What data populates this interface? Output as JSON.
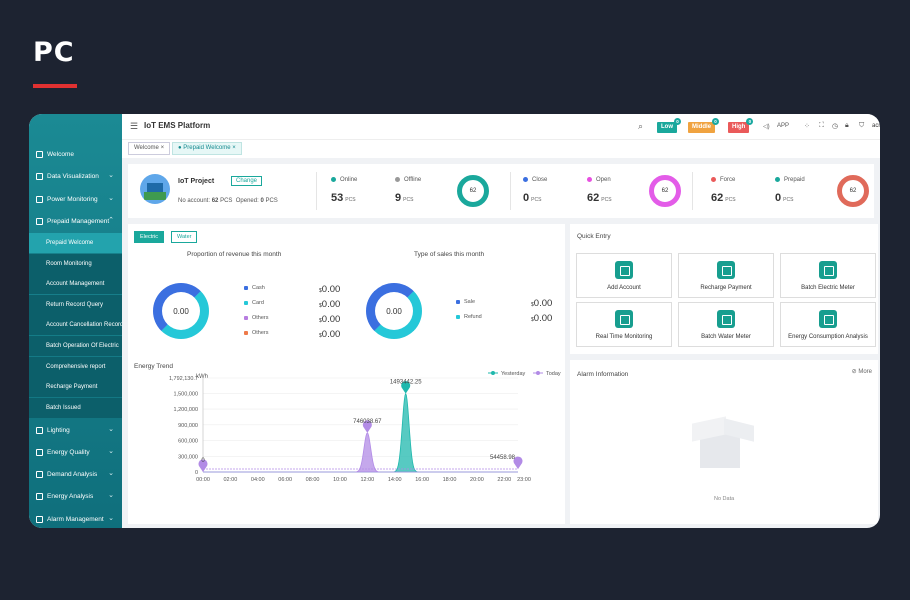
{
  "page_label": "PC",
  "app": {
    "title": "IoT EMS Platform",
    "user": "acrel",
    "app_label": "APP"
  },
  "sidebar": {
    "items": [
      {
        "label": "Welcome"
      },
      {
        "label": "Data Visualization"
      },
      {
        "label": "Power Monitoring"
      },
      {
        "label": "Prepaid Management"
      }
    ],
    "sub_items": [
      {
        "label": "Prepaid Welcome",
        "active": true
      },
      {
        "label": "Room Monitoring"
      },
      {
        "label": "Account Management"
      },
      {
        "label": "Return Record Query"
      },
      {
        "label": "Account Cancellation Record"
      },
      {
        "label": "Batch Operation Of Electric"
      },
      {
        "label": "Comprehensive report"
      },
      {
        "label": "Recharge Payment"
      },
      {
        "label": "Batch Issued"
      }
    ],
    "bottom_items": [
      {
        "label": "Lighting"
      },
      {
        "label": "Energy Quality"
      },
      {
        "label": "Demand Analysis"
      },
      {
        "label": "Energy Analysis"
      },
      {
        "label": "Alarm Management"
      }
    ]
  },
  "tabs": [
    {
      "label": "Welcome"
    },
    {
      "label": "Prepaid Welcome"
    }
  ],
  "alarm_levels": [
    {
      "label": "Low",
      "count": "0",
      "color": "#1aa89c"
    },
    {
      "label": "Middle",
      "count": "0",
      "color": "#f0a340"
    },
    {
      "label": "High",
      "count": "0",
      "color": "#ea5a5a"
    }
  ],
  "project": {
    "name": "IoT Project",
    "change_label": "Change",
    "no_account_label": "No account:",
    "no_account": "62",
    "opened_label": "Opened:",
    "opened": "0",
    "unit": "PCS"
  },
  "stats": [
    {
      "a_label": "Online",
      "a_val": "53",
      "a_color": "#1aa89c",
      "b_label": "Offline",
      "b_val": "9",
      "b_color": "#999999",
      "total": "62",
      "ring_color": "#1aa89c"
    },
    {
      "a_label": "Close",
      "a_val": "0",
      "a_color": "#3b6fe0",
      "b_label": "Open",
      "b_val": "62",
      "b_color": "#e74fe0",
      "total": "62",
      "ring_color": "#e35ce8"
    },
    {
      "a_label": "Force",
      "a_val": "62",
      "a_color": "#ea5a5a",
      "b_label": "Prepaid",
      "b_val": "0",
      "b_color": "#1aa89c",
      "total": "62",
      "ring_color": "#e06a5a"
    }
  ],
  "toggle": {
    "electric": "Electric",
    "water": "Water"
  },
  "revenue": {
    "title": "Proportion of revenue this month",
    "center": "0.00",
    "legend": [
      {
        "label": "Cash",
        "color": "#3b6fe0",
        "amount": "0.00"
      },
      {
        "label": "Card",
        "color": "#25c8d8",
        "amount": "0.00"
      },
      {
        "label": "Others",
        "color": "#b77de0",
        "amount": "0.00"
      },
      {
        "label": "Others",
        "color": "#ee7a4a",
        "amount": "0.00"
      }
    ],
    "currency": "$"
  },
  "sales": {
    "title": "Type of sales this month",
    "center": "0.00",
    "legend": [
      {
        "label": "Sale",
        "color": "#3b6fe0",
        "amount": "0.00"
      },
      {
        "label": "Refund",
        "color": "#25c8d8",
        "amount": "0.00"
      }
    ],
    "currency": "$"
  },
  "quick_entry": {
    "title": "Quick Entry",
    "items": [
      {
        "label": "Add Account",
        "icon": "add-user-icon"
      },
      {
        "label": "Recharge Payment",
        "icon": "recharge-icon"
      },
      {
        "label": "Batch Electric Meter",
        "icon": "meter-icon"
      },
      {
        "label": "Real Time Monitoring",
        "icon": "monitor-icon"
      },
      {
        "label": "Batch Water Meter",
        "icon": "water-meter-icon"
      },
      {
        "label": "Energy Consumption Analysis",
        "icon": "analysis-icon"
      }
    ]
  },
  "alarm_info": {
    "title": "Alarm Information",
    "more": "More",
    "empty": "No Data"
  },
  "chart_data": {
    "type": "area",
    "title": "Energy Trend",
    "ylabel": "kWh",
    "y_ticks": [
      "1,792,130.7",
      "1,500,000",
      "1,200,000",
      "900,000",
      "600,000",
      "300,000",
      "0"
    ],
    "x_ticks": [
      "00:00",
      "02:00",
      "04:00",
      "06:00",
      "08:00",
      "10:00",
      "12:00",
      "14:00",
      "16:00",
      "18:00",
      "20:00",
      "22:00",
      "23:00"
    ],
    "ylim": [
      0,
      1792130.7
    ],
    "legend": [
      {
        "name": "Yesterday",
        "color": "#1fb8ad"
      },
      {
        "name": "Today",
        "color": "#b28be6"
      }
    ],
    "series": [
      {
        "name": "Yesterday",
        "color": "#1fb8ad",
        "peak_x": 14.8,
        "peak_y": 1493442.25,
        "width": 0.35
      },
      {
        "name": "Today",
        "color": "#b28be6",
        "peak_x": 12.0,
        "peak_y": 746038.67,
        "width": 0.35
      }
    ],
    "annotations": [
      {
        "x": 14.8,
        "y": 1493442.25,
        "label": "1493442.25"
      },
      {
        "x": 12.0,
        "y": 746038.67,
        "label": "746038.67"
      },
      {
        "x": 0.0,
        "y": 0,
        "label": "0"
      },
      {
        "x": 23.0,
        "y": 54458.98,
        "label": "54458.98"
      }
    ]
  }
}
